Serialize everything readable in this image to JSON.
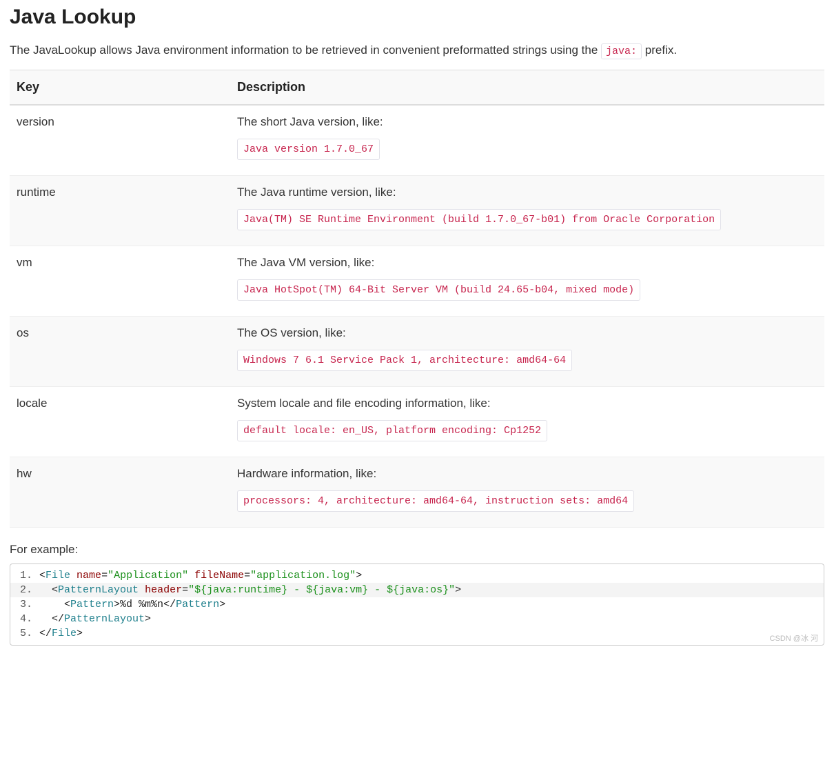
{
  "title": "Java Lookup",
  "intro_before": "The JavaLookup allows Java environment information to be retrieved in convenient preformatted strings using the ",
  "intro_code": "java:",
  "intro_after": " prefix.",
  "table": {
    "headers": [
      "Key",
      "Description"
    ],
    "rows": [
      {
        "key": "version",
        "desc": "The short Java version, like:",
        "code": "Java version 1.7.0_67"
      },
      {
        "key": "runtime",
        "desc": "The Java runtime version, like:",
        "code": "Java(TM) SE Runtime Environment (build 1.7.0_67-b01) from Oracle Corporation"
      },
      {
        "key": "vm",
        "desc": "The Java VM version, like:",
        "code": "Java HotSpot(TM) 64-Bit Server VM (build 24.65-b04, mixed mode)"
      },
      {
        "key": "os",
        "desc": "The OS version, like:",
        "code": "Windows 7 6.1 Service Pack 1, architecture: amd64-64"
      },
      {
        "key": "locale",
        "desc": "System locale and file encoding information, like:",
        "code": "default locale: en_US, platform encoding: Cp1252"
      },
      {
        "key": "hw",
        "desc": "Hardware information, like:",
        "code": "processors: 4, architecture: amd64-64, instruction sets: amd64"
      }
    ]
  },
  "example_label": "For example:",
  "example_code": {
    "colors": {
      "tag": "#1e7f8c",
      "attr": "#8b0000",
      "str": "#1a8f1a",
      "txt": "#222222",
      "highlight_bg": "#f4f4f4"
    },
    "lines": [
      {
        "n": 1,
        "hl": false,
        "tokens": [
          {
            "t": "txt",
            "v": "<"
          },
          {
            "t": "tag",
            "v": "File"
          },
          {
            "t": "txt",
            "v": " "
          },
          {
            "t": "attr",
            "v": "name"
          },
          {
            "t": "txt",
            "v": "="
          },
          {
            "t": "str",
            "v": "\"Application\""
          },
          {
            "t": "txt",
            "v": " "
          },
          {
            "t": "attr",
            "v": "fileName"
          },
          {
            "t": "txt",
            "v": "="
          },
          {
            "t": "str",
            "v": "\"application.log\""
          },
          {
            "t": "txt",
            "v": ">"
          }
        ]
      },
      {
        "n": 2,
        "hl": true,
        "tokens": [
          {
            "t": "txt",
            "v": "  <"
          },
          {
            "t": "tag",
            "v": "PatternLayout"
          },
          {
            "t": "txt",
            "v": " "
          },
          {
            "t": "attr",
            "v": "header"
          },
          {
            "t": "txt",
            "v": "="
          },
          {
            "t": "str",
            "v": "\"${java:runtime} - ${java:vm} - ${java:os}\""
          },
          {
            "t": "txt",
            "v": ">"
          }
        ]
      },
      {
        "n": 3,
        "hl": false,
        "tokens": [
          {
            "t": "txt",
            "v": "    <"
          },
          {
            "t": "tag",
            "v": "Pattern"
          },
          {
            "t": "txt",
            "v": ">"
          },
          {
            "t": "txt",
            "v": "%d %m%n"
          },
          {
            "t": "txt",
            "v": "</"
          },
          {
            "t": "tag",
            "v": "Pattern"
          },
          {
            "t": "txt",
            "v": ">"
          }
        ]
      },
      {
        "n": 4,
        "hl": false,
        "tokens": [
          {
            "t": "txt",
            "v": "  </"
          },
          {
            "t": "tag",
            "v": "PatternLayout"
          },
          {
            "t": "txt",
            "v": ">"
          }
        ]
      },
      {
        "n": 5,
        "hl": false,
        "tokens": [
          {
            "t": "txt",
            "v": "</"
          },
          {
            "t": "tag",
            "v": "File"
          },
          {
            "t": "txt",
            "v": ">"
          }
        ]
      }
    ]
  },
  "watermark": "CSDN @冰 河"
}
